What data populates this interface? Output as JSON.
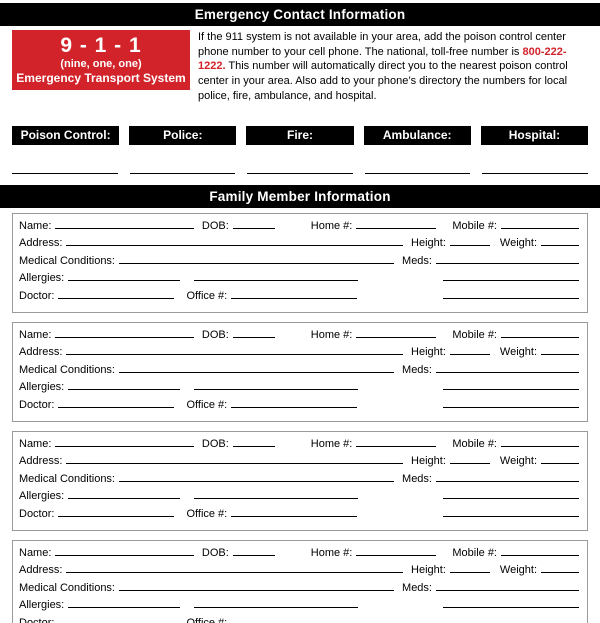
{
  "header": {
    "title": "Emergency Contact Information"
  },
  "emergency_911": {
    "number": "9 - 1 - 1",
    "pronunciation": "(nine, one, one)",
    "system_name": "Emergency Transport System",
    "bg_color": "#d2232a",
    "text_color": "#ffffff"
  },
  "poison_info": {
    "text_before": "If the 911 system is not available in your area, add the poison control center phone number to your cell phone. The national, toll-free number is ",
    "phone": "800-222-1222.",
    "text_after": " This number will automatically direct you to the nearest poison control center in your area. Also add to your phone’s directory the numbers for local police, fire, ambulance, and hospital.",
    "phone_color": "#d2232a"
  },
  "contact_labels": [
    "Poison Control:",
    "Police:",
    "Fire:",
    "Ambulance:",
    "Hospital:"
  ],
  "contact_values": [
    "",
    "",
    "",
    "",
    ""
  ],
  "family_section": {
    "title": "Family Member Information",
    "member_count": 4,
    "field_labels": {
      "name": "Name:",
      "dob": "DOB:",
      "home": "Home #:",
      "mobile": "Mobile #:",
      "address": "Address:",
      "height": "Height:",
      "weight": "Weight:",
      "medical": "Medical Conditions:",
      "meds": "Meds:",
      "allergies": "Allergies:",
      "doctor": "Doctor:",
      "office": "Office #:"
    },
    "field_values": {
      "name": "",
      "dob": "",
      "home": "",
      "mobile": "",
      "address": "",
      "height": "",
      "weight": "",
      "medical": "",
      "meds": "",
      "allergies": "",
      "doctor": "",
      "office": ""
    }
  },
  "colors": {
    "bar_background": "#000000",
    "bar_text": "#ffffff",
    "accent_red": "#d2232a",
    "block_border": "#9a9a9a"
  }
}
